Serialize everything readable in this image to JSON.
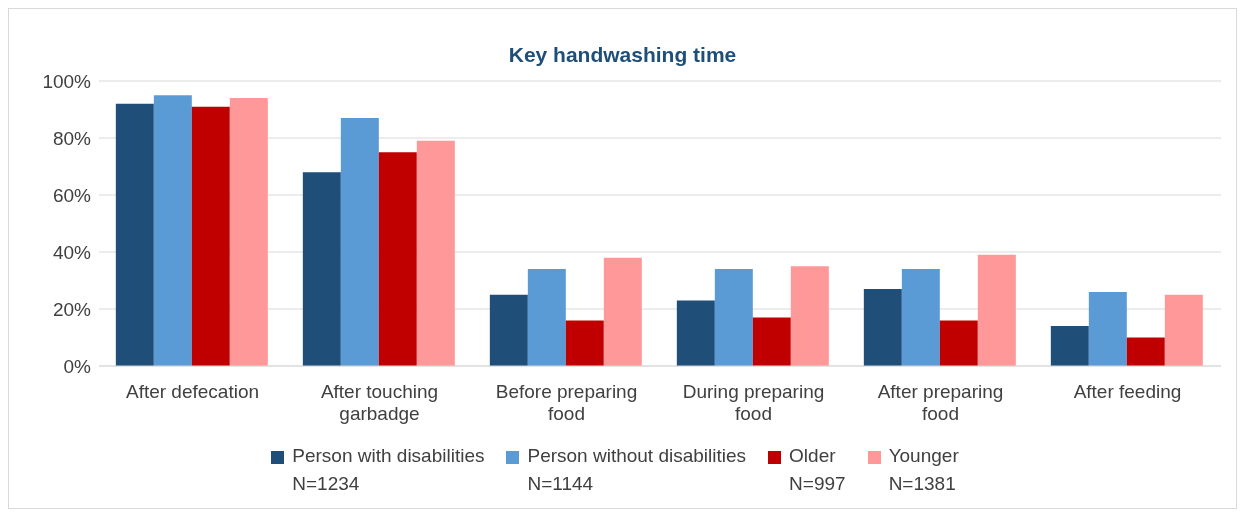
{
  "chart_data": {
    "type": "bar",
    "title": "Key handwashing time",
    "categories": [
      "After defecation",
      "After touching garbadge",
      "Before preparing food",
      "During preparing food",
      "After preparing food",
      "After feeding"
    ],
    "series": [
      {
        "name": "Person with disabilities\nN=1234",
        "color": "#1f4e79",
        "values": [
          92,
          68,
          25,
          23,
          27,
          14
        ]
      },
      {
        "name": "Person without disabilities\nN=1144",
        "color": "#5b9bd5",
        "values": [
          95,
          87,
          34,
          34,
          34,
          26
        ]
      },
      {
        "name": "Older\nN=997",
        "color": "#c00000",
        "values": [
          91,
          75,
          16,
          17,
          16,
          10
        ]
      },
      {
        "name": "Younger\nN=1381",
        "color": "#ff9999",
        "values": [
          94,
          79,
          38,
          35,
          39,
          25
        ]
      }
    ],
    "ylim": [
      0,
      100
    ],
    "yticks": [
      {
        "value": 0,
        "label": "0%"
      },
      {
        "value": 20,
        "label": "20%"
      },
      {
        "value": 40,
        "label": "40%"
      },
      {
        "value": 60,
        "label": "60%"
      },
      {
        "value": 80,
        "label": "80%"
      },
      {
        "value": 100,
        "label": "100%"
      }
    ],
    "grid": "y",
    "legend": "bottom"
  }
}
